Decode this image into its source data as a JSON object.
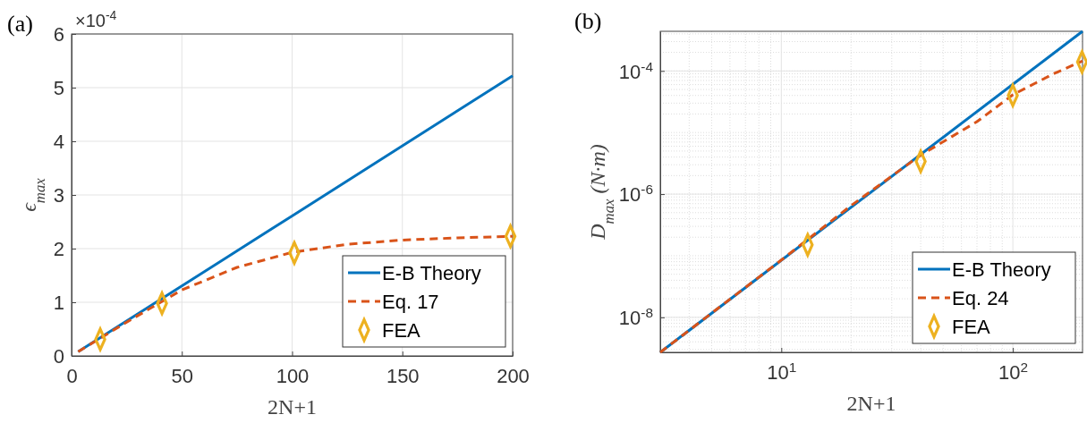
{
  "chart_data": [
    {
      "type": "line",
      "title": "(a)",
      "xlabel": "2N+1",
      "ylabel": "ϵ$_{max}$",
      "annotations": [
        "×10$^{-4}$"
      ],
      "xlim": [
        0,
        200
      ],
      "xticks": [
        0,
        50,
        100,
        150,
        200
      ],
      "ylim": [
        0,
        6
      ],
      "yticks": [
        0,
        1,
        2,
        3,
        4,
        5,
        6
      ],
      "grid": true,
      "legend": "bottom right",
      "series": [
        {
          "name": "E-B Theory",
          "color": "#0072bd",
          "line_style": "solid",
          "x": [
            3,
            100,
            200
          ],
          "values": [
            0.08,
            2.61,
            5.22
          ]
        },
        {
          "name": "Eq. 17",
          "color": "#d95319",
          "line_style": "dashed",
          "x": [
            3,
            25,
            50,
            75,
            100,
            125,
            150,
            175,
            200
          ],
          "values": [
            0.08,
            0.63,
            1.23,
            1.65,
            1.93,
            2.08,
            2.16,
            2.2,
            2.23
          ]
        },
        {
          "name": "FEA",
          "type": "scatter",
          "color": "#edb120",
          "marker": "diamond",
          "x": [
            13,
            41,
            101,
            199
          ],
          "values": [
            0.31,
            0.98,
            1.92,
            2.23
          ]
        }
      ]
    },
    {
      "type": "line",
      "title": "(b)",
      "xlabel": "2N+1",
      "ylabel": "D$_{max}$  (N·m)",
      "log": "xy",
      "xlim": [
        3,
        200
      ],
      "xticks": [
        {
          "value": 10,
          "label": "10$^{1}$"
        },
        {
          "value": 100,
          "label": "10$^{2}$"
        }
      ],
      "ylim": [
        2.7e-09,
        0.00044
      ],
      "yticks": [
        {
          "value": 1e-08,
          "label": "10$^{-8}$"
        },
        {
          "value": 1e-06,
          "label": "10$^{-6}$"
        },
        {
          "value": 0.0001,
          "label": "10$^{-4}$"
        }
      ],
      "grid": true,
      "legend": "bottom right",
      "series": [
        {
          "name": "E-B Theory",
          "color": "#0072bd",
          "line_style": "solid",
          "x": [
            3,
            200
          ],
          "values": [
            2.7e-09,
            0.00044
          ]
        },
        {
          "name": "Eq. 24",
          "color": "#d95319",
          "line_style": "dashed",
          "x": [
            3,
            10,
            20,
            40,
            70,
            100,
            150,
            200
          ],
          "values": [
            2.7e-09,
            8.5e-08,
            6.5e-07,
            4.3e-06,
            1.5e-05,
            4.1e-05,
            9e-05,
            0.000145
          ]
        },
        {
          "name": "FEA",
          "type": "scatter",
          "color": "#edb120",
          "marker": "diamond",
          "x": [
            13,
            40,
            100,
            199
          ],
          "values": [
            1.5e-07,
            3.4e-06,
            4e-05,
            0.00014
          ]
        }
      ]
    }
  ]
}
